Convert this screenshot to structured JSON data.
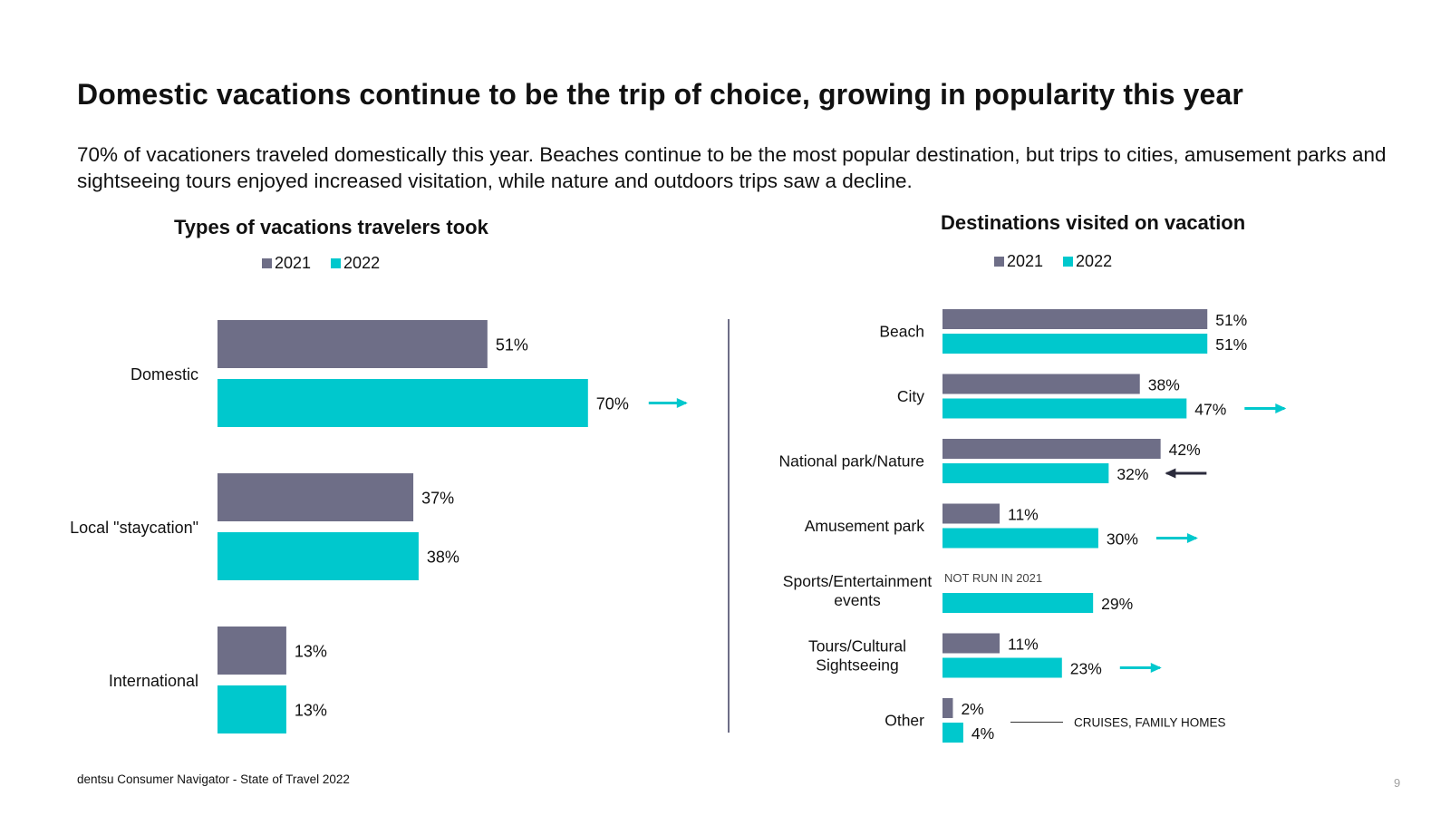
{
  "title": "Domestic vacations continue to be the trip of choice, growing in popularity this year",
  "subtitle": "70% of vacationers traveled domestically this year. Beaches continue to be the most popular destination, but trips to cities, amusement parks and sightseeing tours enjoyed increased visitation, while nature and outdoors trips saw a decline.",
  "footer": "dentsu Consumer Navigator - State of Travel 2022",
  "page_number": "9",
  "colors": {
    "s2021": "#6e6e87",
    "s2022": "#00c8cd",
    "arrow_up": "#00c8cd",
    "arrow_down": "#2b2b3c",
    "divider": "#6e6e87"
  },
  "chart_data": [
    {
      "type": "bar",
      "orientation": "horizontal",
      "title": "Types of vacations travelers took",
      "legend": [
        "2021",
        "2022"
      ],
      "categories": [
        "Domestic",
        "Local \"staycation\"",
        "International"
      ],
      "series": [
        {
          "name": "2021",
          "values": [
            51,
            37,
            13
          ],
          "labels": [
            "51%",
            "37%",
            "13%"
          ]
        },
        {
          "name": "2022",
          "values": [
            70,
            38,
            13
          ],
          "labels": [
            "70%",
            "38%",
            "13%"
          ]
        }
      ],
      "trend": [
        "up",
        null,
        null
      ]
    },
    {
      "type": "bar",
      "orientation": "horizontal",
      "title": "Destinations visited on vacation",
      "legend": [
        "2021",
        "2022"
      ],
      "categories": [
        "Beach",
        "City",
        "National park/Nature",
        "Amusement park",
        "Sports/Entertainment events",
        "Tours/Cultural Sightseeing",
        "Other"
      ],
      "category_lines": [
        [
          "Beach"
        ],
        [
          "City"
        ],
        [
          "National park/Nature"
        ],
        [
          "Amusement park"
        ],
        [
          "Sports/Entertainment",
          "events"
        ],
        [
          "Tours/Cultural",
          "Sightseeing"
        ],
        [
          "Other"
        ]
      ],
      "series": [
        {
          "name": "2021",
          "values": [
            51,
            38,
            42,
            11,
            null,
            11,
            2
          ],
          "labels": [
            "51%",
            "38%",
            "42%",
            "11%",
            null,
            "11%",
            "2%"
          ]
        },
        {
          "name": "2022",
          "values": [
            51,
            47,
            32,
            30,
            29,
            23,
            4
          ],
          "labels": [
            "51%",
            "47%",
            "32%",
            "30%",
            "29%",
            "23%",
            "4%"
          ]
        }
      ],
      "trend": [
        null,
        "up",
        "down",
        "up",
        null,
        "up",
        null
      ],
      "annotations": {
        "not_run": "NOT RUN IN 2021",
        "other_note": "CRUISES, FAMILY HOMES"
      }
    }
  ]
}
